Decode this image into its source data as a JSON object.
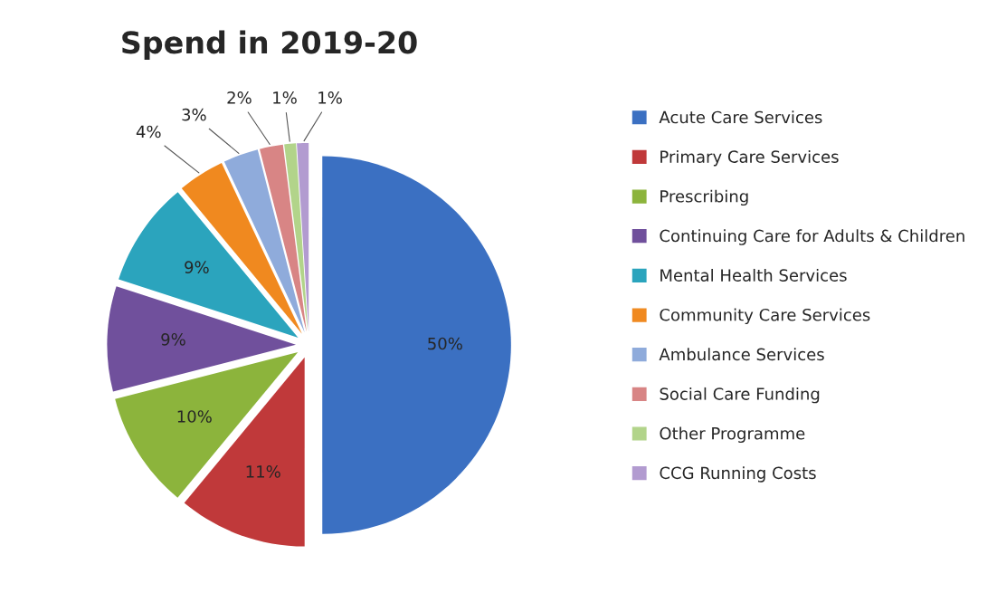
{
  "chart_data": {
    "type": "pie",
    "title": "Spend in 2019-20",
    "categories": [
      "Acute Care Services",
      "Primary Care Services",
      "Prescribing",
      "Continuing Care for Adults & Children",
      "Mental Health Services",
      "Community Care Services",
      "Ambulance Services",
      "Social Care Funding",
      "Other Programme",
      "CCG Running Costs"
    ],
    "values": [
      50,
      11,
      10,
      9,
      9,
      4,
      3,
      2,
      1,
      1
    ],
    "value_labels": [
      "50%",
      "11%",
      "10%",
      "9%",
      "9%",
      "4%",
      "3%",
      "2%",
      "1%",
      "1%"
    ],
    "colors": [
      "#3b70c2",
      "#c0393a",
      "#8cb43c",
      "#70509c",
      "#2ba4bd",
      "#f0891f",
      "#8fabdb",
      "#d88585",
      "#b2d48a",
      "#b29bd0"
    ],
    "legend": "right"
  }
}
